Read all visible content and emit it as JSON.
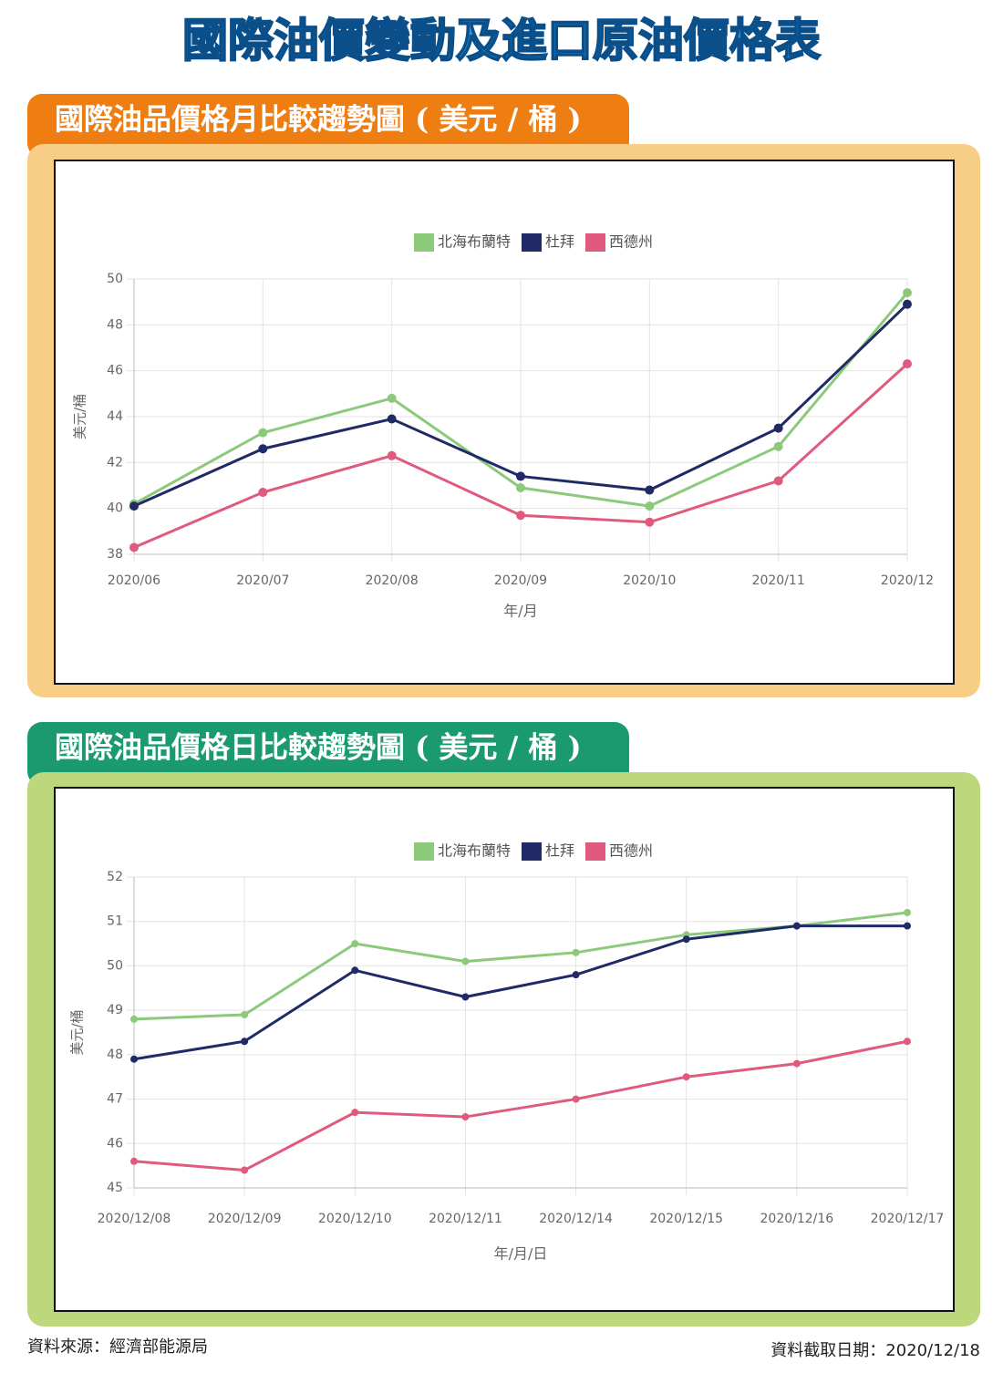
{
  "title": "國際油價變動及進口原油價格表",
  "chart_data": [
    {
      "type": "line",
      "title": "國際油品價格月比較趨勢圖 ( 美元 / 桶 )",
      "x_label": "年/月",
      "y_label": "美元/桶",
      "categories": [
        "2020/06",
        "2020/07",
        "2020/08",
        "2020/09",
        "2020/10",
        "2020/11",
        "2020/12"
      ],
      "ylim": [
        38,
        50
      ],
      "yticks": [
        38,
        40,
        42,
        44,
        46,
        48,
        50
      ],
      "grid": true,
      "series": [
        {
          "name": "北海布蘭特",
          "color": "#8cc97b",
          "values": [
            40.2,
            43.3,
            44.8,
            40.9,
            40.1,
            42.7,
            49.4
          ]
        },
        {
          "name": "杜拜",
          "color": "#1f2a66",
          "values": [
            40.1,
            42.6,
            43.9,
            41.4,
            40.8,
            43.5,
            48.9
          ]
        },
        {
          "name": "西德州",
          "color": "#e05a7d",
          "values": [
            38.3,
            40.7,
            42.3,
            39.7,
            39.4,
            41.2,
            46.3
          ]
        }
      ]
    },
    {
      "type": "line",
      "title": "國際油品價格日比較趨勢圖 ( 美元 / 桶 )",
      "x_label": "年/月/日",
      "y_label": "美元/桶",
      "categories": [
        "2020/12/08",
        "2020/12/09",
        "2020/12/10",
        "2020/12/11",
        "2020/12/14",
        "2020/12/15",
        "2020/12/16",
        "2020/12/17"
      ],
      "ylim": [
        45,
        52
      ],
      "yticks": [
        45,
        46,
        47,
        48,
        49,
        50,
        51,
        52
      ],
      "grid": true,
      "series": [
        {
          "name": "北海布蘭特",
          "color": "#8cc97b",
          "values": [
            48.8,
            48.9,
            50.5,
            50.1,
            50.3,
            50.7,
            50.9,
            51.2
          ]
        },
        {
          "name": "杜拜",
          "color": "#1f2a66",
          "values": [
            47.9,
            48.3,
            49.9,
            49.3,
            49.8,
            50.6,
            50.9,
            50.9
          ]
        },
        {
          "name": "西德州",
          "color": "#e05a7d",
          "values": [
            45.6,
            45.4,
            46.7,
            46.6,
            47.0,
            47.5,
            47.8,
            48.3
          ]
        }
      ]
    }
  ],
  "source": "資料來源：經濟部能源局",
  "date": "資料截取日期：2020/12/18"
}
